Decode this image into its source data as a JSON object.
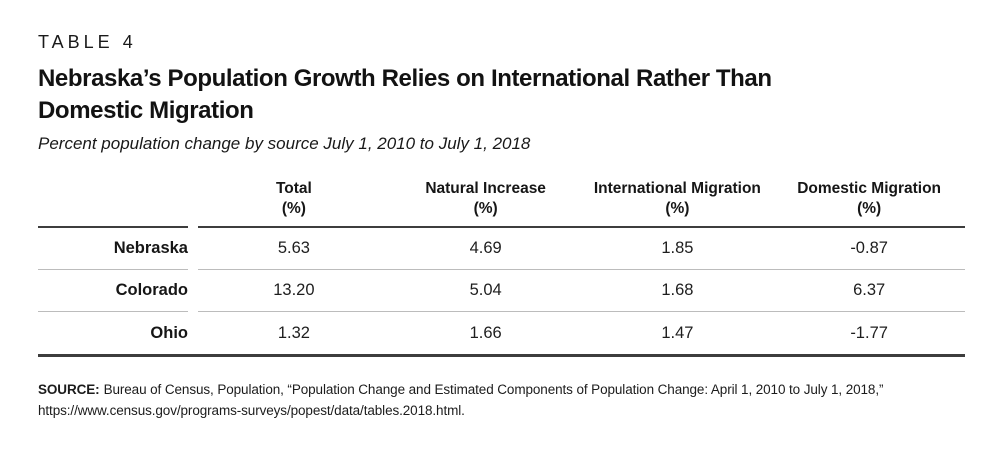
{
  "figure": {
    "table_label": "TABLE 4",
    "title_full": "Nebraska’s Population Growth Relies on International Rather Than Domestic Migration",
    "title_line1": "Nebraska’s Population Growth Relies on International Rather Than",
    "title_line2": "Domestic Migration",
    "subtitle": "Percent population change by source July 1, 2010 to July 1, 2018"
  },
  "table": {
    "columns": [
      {
        "label": "Total",
        "unit": "(%)"
      },
      {
        "label": "Natural Increase",
        "unit": "(%)"
      },
      {
        "label": "International Migration",
        "unit": "(%)"
      },
      {
        "label": "Domestic Migration",
        "unit": "(%)"
      }
    ],
    "rows": [
      {
        "label": "Nebraska",
        "values": [
          "5.63",
          "4.69",
          "1.85",
          "-0.87"
        ]
      },
      {
        "label": "Colorado",
        "values": [
          "13.20",
          "5.04",
          "1.68",
          "6.37"
        ]
      },
      {
        "label": "Ohio",
        "values": [
          "1.32",
          "1.66",
          "1.47",
          "-1.77"
        ]
      }
    ]
  },
  "source": {
    "prefix": "SOURCE:",
    "text": "Bureau of Census, Population, “Population Change and Estimated Components of Population Change: April 1, 2010 to July 1, 2018,” https://www.census.gov/programs-surveys/popest/data/tables.2018.html."
  },
  "colors": {
    "text": "#1b1b1b",
    "heavy_rule": "#3d3d3d",
    "light_rule": "#bcbcbc",
    "background": "#ffffff"
  },
  "chart_data": {
    "type": "table",
    "title": "Nebraska’s Population Growth Relies on International Rather Than Domestic Migration",
    "subtitle": "Percent population change by source July 1, 2010 to July 1, 2018",
    "columns": [
      "",
      "Total (%)",
      "Natural Increase (%)",
      "International Migration (%)",
      "Domestic Migration (%)"
    ],
    "rows": [
      [
        "Nebraska",
        5.63,
        4.69,
        1.85,
        -0.87
      ],
      [
        "Colorado",
        13.2,
        5.04,
        1.68,
        6.37
      ],
      [
        "Ohio",
        1.32,
        1.66,
        1.47,
        -1.77
      ]
    ],
    "source": "Bureau of Census, Population, “Population Change and Estimated Components of Population Change: April 1, 2010 to July 1, 2018,” https://www.census.gov/programs-surveys/popest/data/tables.2018.html."
  }
}
